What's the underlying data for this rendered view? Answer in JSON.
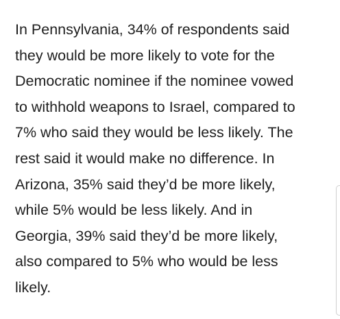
{
  "article": {
    "lines": [
      "In Pennsylvania, 34% of respondents said",
      "they would be more likely to vote for the",
      "Democratic nominee if the nominee vowed",
      "to withhold weapons to Israel, compared to",
      "7% who said they would be less likely. The",
      "rest said it would make no difference. In",
      "Arizona, 35% said they’d be more likely,",
      "while 5% would be less likely. And in",
      "Georgia, 39% said they’d be more likely,",
      "also compared to 5% who would be less",
      "likely."
    ]
  },
  "colors": {
    "text": "#1e1e1e",
    "background": "#ffffff",
    "scroll_indicator_border": "#cfcfcf"
  }
}
